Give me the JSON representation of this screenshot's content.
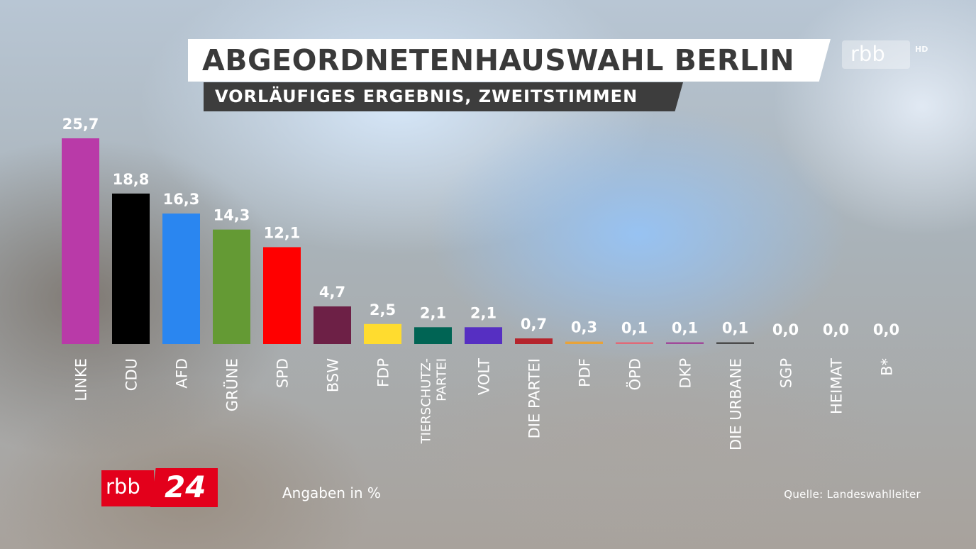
{
  "header": {
    "title": "ABGEORDNETENHAUSWAHL BERLIN",
    "subtitle": "VORLÄUFIGES ERGEBNIS, ZWEITSTIMMEN",
    "channel_logo": "rbb",
    "hd_label": "HD"
  },
  "footer": {
    "logo_rbb": "rbb",
    "logo_24": "24",
    "units_note": "Angaben in %",
    "source": "Quelle: Landeswahlleiter"
  },
  "chart_data": {
    "type": "bar",
    "title": "ABGEORDNETENHAUSWAHL BERLIN",
    "subtitle": "VORLÄUFIGES ERGEBNIS, ZWEITSTIMMEN",
    "xlabel": "",
    "ylabel": "",
    "unit": "Angaben in %",
    "ylim": [
      0,
      25.7
    ],
    "grid": false,
    "legend": "none",
    "categories": [
      "LINKE",
      "CDU",
      "AFD",
      "GRÜNE",
      "SPD",
      "BSW",
      "FDP",
      "TIERSCHUTZ-\nPARTEI",
      "VOLT",
      "DIE PARTEI",
      "PDF",
      "ÖPD",
      "DKP",
      "DIE URBANE",
      "SGP",
      "HEIMAT",
      "B*"
    ],
    "values": [
      25.7,
      18.8,
      16.3,
      14.3,
      12.1,
      4.7,
      2.5,
      2.1,
      2.1,
      0.7,
      0.3,
      0.1,
      0.1,
      0.1,
      0.0,
      0.0,
      0.0
    ],
    "value_labels": [
      "25,7",
      "18,8",
      "16,3",
      "14,3",
      "12,1",
      "4,7",
      "2,5",
      "2,1",
      "2,1",
      "0,7",
      "0,3",
      "0,1",
      "0,1",
      "0,1",
      "0,0",
      "0,0",
      "0,0"
    ],
    "colors": [
      "#b93aa8",
      "#000000",
      "#2a86f0",
      "#649a34",
      "#ff0000",
      "#6d2046",
      "#ffdc2f",
      "#006454",
      "#562fc2",
      "#b5242c",
      "#e8a33a",
      "#e06a78",
      "#a04a9a",
      "#4b4b4b",
      "#d23a3a",
      "#6e5a4a",
      "#8a8a8a"
    ]
  }
}
